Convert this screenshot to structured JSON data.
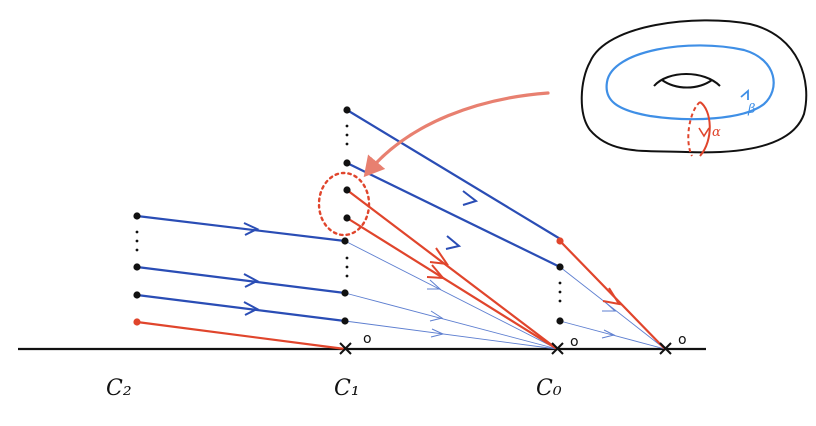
{
  "colors": {
    "blue": "#2a4db5",
    "blue_thin": "#5e7fd0",
    "red": "#e0452c",
    "torus_blue": "#3f8fe6",
    "black": "#111111"
  },
  "labels": {
    "c2": "C₂",
    "c1": "C₁",
    "c0": "C₀",
    "zero": "o",
    "alpha": "α",
    "beta": "β"
  }
}
